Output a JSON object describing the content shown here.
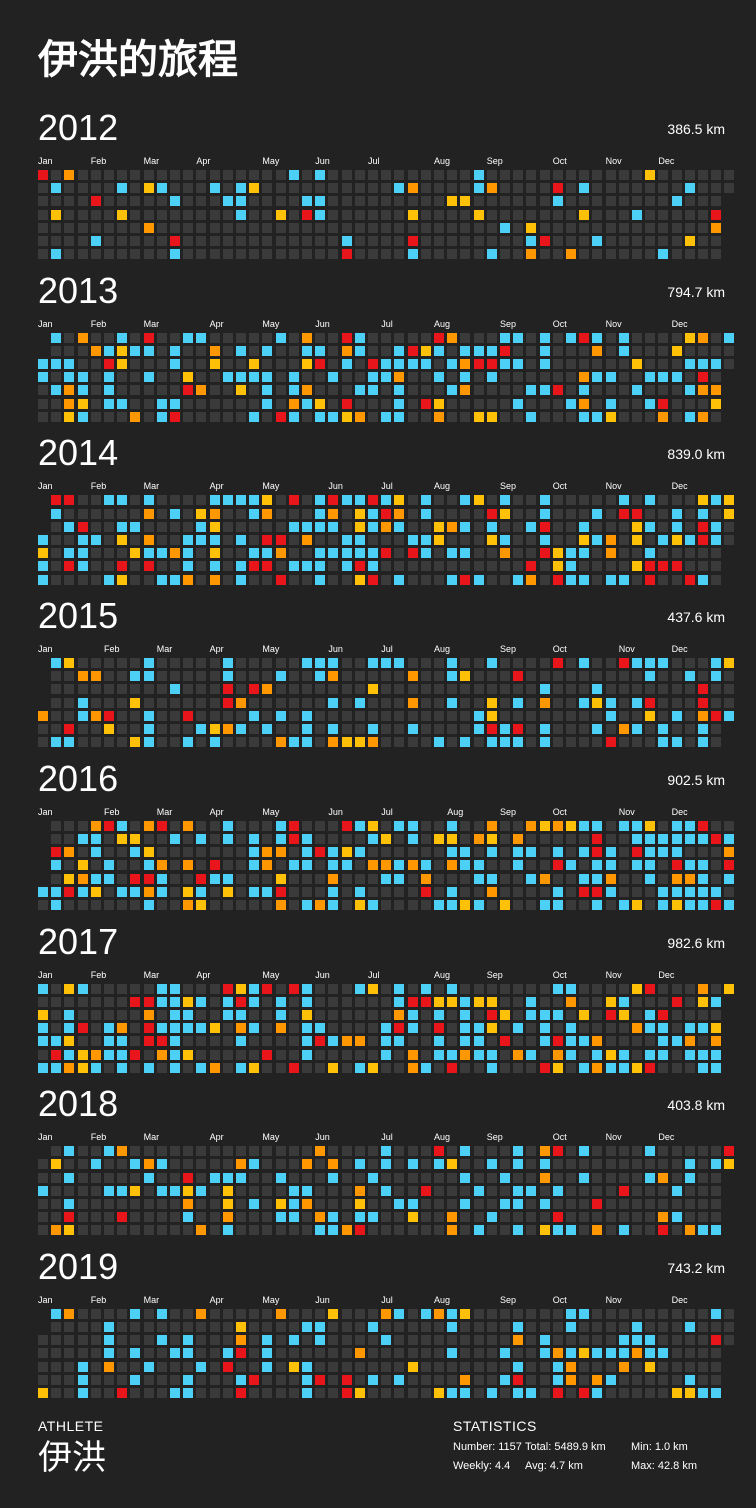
{
  "page_title": "伊洪的旅程",
  "months": [
    "Jan",
    "Feb",
    "Mar",
    "Apr",
    "May",
    "Jun",
    "Jul",
    "Aug",
    "Sep",
    "Oct",
    "Nov",
    "Dec"
  ],
  "colors": {
    "background": "#222222",
    "empty": "#3a3a3a",
    "level_1": "#4dd0f5",
    "level_2": "#ffc107",
    "level_3": "#ff9800",
    "level_4": "#e8151b"
  },
  "years": [
    {
      "year": "2012",
      "distance": "386.5 km",
      "first_weekday": 0,
      "days": 366,
      "active_days": 46
    },
    {
      "year": "2013",
      "distance": "794.7 km",
      "first_weekday": 2,
      "days": 365,
      "active_days": 176
    },
    {
      "year": "2014",
      "distance": "839.0 km",
      "first_weekday": 3,
      "days": 365,
      "active_days": 166
    },
    {
      "year": "2015",
      "distance": "437.6 km",
      "first_weekday": 4,
      "days": 365,
      "active_days": 128
    },
    {
      "year": "2016",
      "distance": "902.5 km",
      "first_weekday": 5,
      "days": 366,
      "active_days": 208
    },
    {
      "year": "2017",
      "distance": "982.6 km",
      "first_weekday": 0,
      "days": 365,
      "active_days": 195
    },
    {
      "year": "2018",
      "distance": "403.8 km",
      "first_weekday": 1,
      "days": 365,
      "active_days": 122
    },
    {
      "year": "2019",
      "distance": "743.2 km",
      "first_weekday": 2,
      "days": 365,
      "active_days": 116
    }
  ],
  "footer": {
    "athlete_heading": "ATHLETE",
    "athlete_name": "伊洪",
    "statistics_heading": "STATISTICS",
    "number": "Number: 1157",
    "total": "Total: 5489.9 km",
    "min": "Min: 1.0 km",
    "weekly": "Weekly: 4.4",
    "avg": "Avg: 4.7 km",
    "max": "Max: 42.8 km"
  }
}
